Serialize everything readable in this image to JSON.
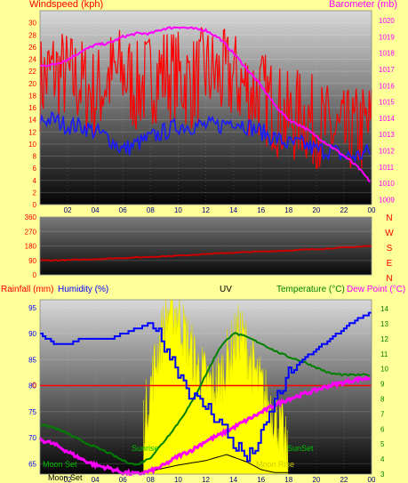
{
  "colors": {
    "background": "#ffff99",
    "wind": "#ff0000",
    "wind_avg": "#1a1aff",
    "barometer": "#ff00ff",
    "direction": "#cc0000",
    "humidity": "#0000ff",
    "temperature": "#008000",
    "dew_point": "#ff00ff",
    "uv": "#ffff00",
    "rain": "#ff0000",
    "solar": "#000000"
  },
  "chart_data": [
    {
      "type": "line",
      "name": "wind-barometer",
      "title": "",
      "left_label": "Windspeed (kph)",
      "right_label": "Barometer (mb)",
      "x_ticks": [
        "02",
        "04",
        "06",
        "08",
        "10",
        "12",
        "14",
        "16",
        "18",
        "20",
        "22",
        "00"
      ],
      "y_left_ticks": [
        0,
        2,
        4,
        6,
        8,
        10,
        12,
        14,
        16,
        18,
        20,
        22,
        24,
        26,
        28,
        30
      ],
      "y_right_ticks": [
        1009,
        1010,
        1011,
        1012,
        1013,
        1014,
        1015,
        1016,
        1017,
        1018,
        1019,
        1020
      ],
      "ylim_left": [
        0,
        32
      ],
      "ylim_right": [
        1008.7,
        1020.6
      ],
      "x_range": [
        0,
        24
      ],
      "series": [
        {
          "key": "gust",
          "x": [
            0,
            1,
            2,
            3,
            4,
            5,
            6,
            7,
            8,
            9,
            10,
            11,
            12,
            13,
            14,
            15,
            16,
            17,
            18,
            19,
            20,
            21,
            22,
            23,
            24
          ],
          "values": [
            20,
            22,
            21,
            20,
            18,
            21,
            22,
            19,
            21,
            22,
            21,
            20,
            22,
            21,
            21,
            19,
            18,
            16,
            14,
            15,
            13,
            12,
            11,
            12,
            13
          ]
        },
        {
          "key": "average",
          "x": [
            0,
            1,
            2,
            3,
            4,
            5,
            6,
            7,
            8,
            9,
            10,
            11,
            12,
            13,
            14,
            15,
            16,
            17,
            18,
            19,
            20,
            21,
            22,
            23,
            24
          ],
          "values": [
            14,
            14,
            13,
            13,
            12,
            11,
            9,
            10,
            11,
            12,
            13,
            13,
            13,
            13,
            14,
            13,
            12,
            11,
            10,
            10,
            9,
            9,
            8,
            8,
            9
          ]
        },
        {
          "key": "barometer",
          "x": [
            0,
            1,
            2,
            3,
            4,
            5,
            6,
            7,
            8,
            9,
            10,
            11,
            12,
            13,
            14,
            15,
            16,
            17,
            18,
            19,
            20,
            21,
            22,
            23,
            24
          ],
          "values": [
            1017.2,
            1017.3,
            1017.6,
            1018.1,
            1018.5,
            1018.6,
            1019.0,
            1019.2,
            1019.2,
            1019.5,
            1019.6,
            1019.5,
            1019.4,
            1018.9,
            1018.0,
            1017.0,
            1016.0,
            1014.8,
            1013.9,
            1013.5,
            1012.9,
            1012.3,
            1011.7,
            1011.0,
            1010.0
          ]
        }
      ]
    },
    {
      "type": "line",
      "name": "wind-direction",
      "title": "",
      "y_left_ticks": [
        0,
        90,
        180,
        270,
        360
      ],
      "compass_labels": [
        "N",
        "W",
        "S",
        "E",
        "N"
      ],
      "ylim": [
        0,
        360
      ],
      "x_range": [
        0,
        24
      ],
      "series": [
        {
          "key": "direction",
          "x": [
            0,
            2,
            4,
            6,
            8,
            10,
            12,
            14,
            16,
            18,
            20,
            22,
            24
          ],
          "values": [
            90,
            92,
            98,
            105,
            112,
            120,
            130,
            138,
            145,
            152,
            160,
            170,
            180
          ]
        }
      ]
    },
    {
      "type": "line",
      "name": "rain-humidity-temp",
      "title": "UV",
      "left_labels": [
        "Rainfall (mm)",
        "Humidity (%)"
      ],
      "right_labels": [
        "Temperature (°C)",
        "Dew Point (°C)"
      ],
      "x_ticks": [
        "02",
        "04",
        "06",
        "08",
        "10",
        "12",
        "14",
        "16",
        "18",
        "20",
        "22",
        "00"
      ],
      "y_left_ticks": [
        65,
        70,
        75,
        80,
        85,
        90,
        95
      ],
      "y_right_ticks": [
        3,
        4,
        5,
        6,
        7,
        8,
        9,
        10,
        11,
        12,
        13,
        14
      ],
      "ylim_left": [
        63,
        96.5
      ],
      "ylim_right": [
        3,
        14.6
      ],
      "rain_label": "0",
      "rain_value": 80,
      "x_range": [
        0,
        24
      ],
      "annotations": {
        "sunrise": "Sunrise",
        "sunset": "SunSet",
        "moonset": "Moon Set",
        "moonrise": "Moon Rise"
      },
      "series": [
        {
          "key": "humidity",
          "x": [
            0,
            1,
            2,
            3,
            4,
            5,
            6,
            7,
            8,
            9,
            10,
            11,
            12,
            13,
            14,
            15,
            16,
            17,
            18,
            19,
            20,
            21,
            22,
            23,
            24
          ],
          "values": [
            90,
            88,
            88,
            89,
            89,
            89,
            90,
            91,
            92,
            88,
            83,
            78,
            76,
            73,
            69,
            66,
            70,
            77,
            82,
            85,
            87,
            89,
            91,
            93,
            94
          ]
        },
        {
          "key": "temperature",
          "x": [
            0,
            1,
            2,
            3,
            4,
            5,
            6,
            7,
            8,
            9,
            10,
            11,
            12,
            13,
            14,
            15,
            16,
            17,
            18,
            19,
            20,
            21,
            22,
            23,
            24
          ],
          "values": [
            6.3,
            6.1,
            5.7,
            5.2,
            4.8,
            4.4,
            3.9,
            3.6,
            4.1,
            5.2,
            6.4,
            7.8,
            9.6,
            11.4,
            12.4,
            12.1,
            11.7,
            11.2,
            10.8,
            10.5,
            10.1,
            9.7,
            9.6,
            9.6,
            9.6
          ]
        },
        {
          "key": "dew_point",
          "x": [
            0,
            1,
            2,
            3,
            4,
            5,
            6,
            7,
            8,
            9,
            10,
            11,
            12,
            13,
            14,
            15,
            16,
            17,
            18,
            19,
            20,
            21,
            22,
            23,
            24
          ],
          "values": [
            5.3,
            5.0,
            4.5,
            4.0,
            3.6,
            3.4,
            3.1,
            3.0,
            3.2,
            3.6,
            4.2,
            4.6,
            5.2,
            5.6,
            6.1,
            6.6,
            7.1,
            7.6,
            8.0,
            8.3,
            8.6,
            8.9,
            9.1,
            9.3,
            9.4
          ]
        },
        {
          "key": "solar",
          "x": [
            0,
            7.5,
            8.5,
            10,
            12,
            13.5,
            15,
            16,
            17,
            18,
            24
          ],
          "values": [
            3.1,
            3.1,
            3.3,
            3.6,
            3.9,
            4.3,
            3.8,
            3.3,
            3.1,
            3.1,
            3.1
          ]
        }
      ],
      "uv_profile": {
        "x": [
          7.5,
          8,
          8.5,
          9,
          9.5,
          10,
          10.5,
          11,
          11.5,
          12,
          12.5,
          13,
          13.5,
          14,
          14.5,
          15,
          15.5,
          16,
          16.5,
          17,
          17.5,
          18
        ],
        "values": [
          0.3,
          0.5,
          0.7,
          0.85,
          0.97,
          0.92,
          0.8,
          0.7,
          0.6,
          0.55,
          0.5,
          0.55,
          0.65,
          0.75,
          0.82,
          0.72,
          0.6,
          0.5,
          0.42,
          0.35,
          0.25,
          0.1
        ]
      }
    }
  ]
}
